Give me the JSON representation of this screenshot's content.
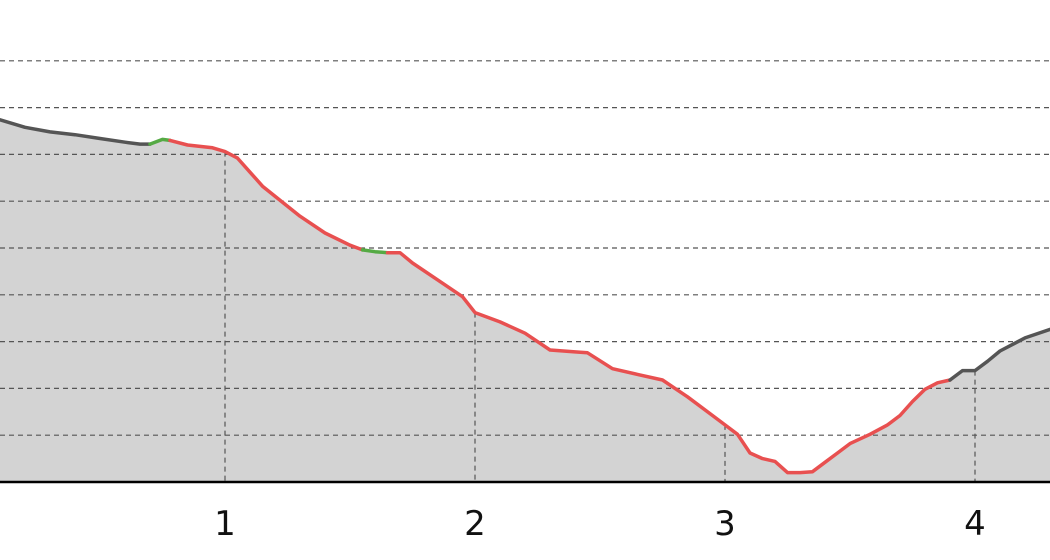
{
  "chart_data": {
    "type": "area",
    "title": "",
    "xlabel": "",
    "ylabel": "",
    "grid": true,
    "xlim": [
      0.1,
      4.3
    ],
    "ylim": [
      0,
      10
    ],
    "x_ticks": [
      {
        "value": 1,
        "label": "1"
      },
      {
        "value": 2,
        "label": "2"
      },
      {
        "value": 3,
        "label": "3"
      },
      {
        "value": 4,
        "label": "4"
      }
    ],
    "y_gridlines": [
      1,
      2,
      3,
      4,
      5,
      6,
      7,
      8,
      9
    ],
    "series": [
      {
        "segments": [
          {
            "color": "#555555",
            "points": [
              [
                0.1,
                7.74
              ],
              [
                0.2,
                7.58
              ],
              [
                0.3,
                7.48
              ],
              [
                0.4,
                7.42
              ],
              [
                0.5,
                7.34
              ],
              [
                0.6,
                7.26
              ],
              [
                0.66,
                7.22
              ],
              [
                0.7,
                7.22
              ]
            ]
          },
          {
            "color": "#55aa44",
            "points": [
              [
                0.7,
                7.22
              ],
              [
                0.75,
                7.32
              ],
              [
                0.78,
                7.3
              ]
            ]
          },
          {
            "color": "#e85050",
            "points": [
              [
                0.78,
                7.3
              ],
              [
                0.85,
                7.2
              ],
              [
                0.95,
                7.14
              ],
              [
                1.0,
                7.06
              ],
              [
                1.05,
                6.92
              ],
              [
                1.1,
                6.62
              ],
              [
                1.15,
                6.32
              ],
              [
                1.22,
                6.02
              ],
              [
                1.3,
                5.68
              ],
              [
                1.4,
                5.32
              ],
              [
                1.5,
                5.06
              ],
              [
                1.55,
                4.96
              ]
            ]
          },
          {
            "color": "#55aa44",
            "points": [
              [
                1.55,
                4.96
              ],
              [
                1.6,
                4.92
              ],
              [
                1.65,
                4.9
              ]
            ]
          },
          {
            "color": "#e85050",
            "points": [
              [
                1.65,
                4.9
              ],
              [
                1.7,
                4.9
              ],
              [
                1.75,
                4.68
              ],
              [
                1.85,
                4.32
              ],
              [
                1.95,
                3.96
              ],
              [
                2.0,
                3.62
              ],
              [
                2.1,
                3.42
              ],
              [
                2.2,
                3.18
              ],
              [
                2.3,
                2.82
              ],
              [
                2.4,
                2.78
              ],
              [
                2.45,
                2.76
              ],
              [
                2.55,
                2.42
              ],
              [
                2.65,
                2.3
              ],
              [
                2.75,
                2.18
              ],
              [
                2.85,
                1.82
              ],
              [
                2.95,
                1.42
              ],
              [
                3.0,
                1.22
              ],
              [
                3.05,
                1.02
              ],
              [
                3.1,
                0.62
              ],
              [
                3.15,
                0.5
              ],
              [
                3.2,
                0.44
              ],
              [
                3.25,
                0.2
              ],
              [
                3.3,
                0.2
              ],
              [
                3.35,
                0.22
              ],
              [
                3.4,
                0.42
              ],
              [
                3.45,
                0.62
              ],
              [
                3.5,
                0.82
              ],
              [
                3.58,
                1.02
              ],
              [
                3.65,
                1.22
              ],
              [
                3.7,
                1.42
              ],
              [
                3.75,
                1.72
              ],
              [
                3.8,
                1.98
              ],
              [
                3.85,
                2.12
              ],
              [
                3.9,
                2.18
              ]
            ]
          },
          {
            "color": "#555555",
            "points": [
              [
                3.9,
                2.18
              ],
              [
                3.95,
                2.38
              ],
              [
                4.0,
                2.38
              ],
              [
                4.05,
                2.58
              ],
              [
                4.1,
                2.8
              ],
              [
                4.2,
                3.08
              ],
              [
                4.3,
                3.26
              ]
            ]
          }
        ]
      }
    ]
  }
}
